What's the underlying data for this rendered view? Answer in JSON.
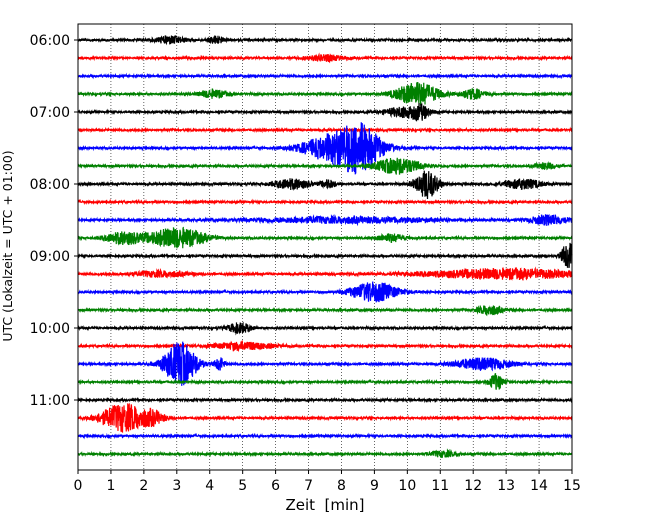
{
  "chart_data": {
    "type": "line",
    "xlabel": "Zeit  [min]",
    "ylabel": "UTC (Lokalzeit = UTC + 01:00)",
    "xlim": [
      0,
      15
    ],
    "xticks": [
      0,
      1,
      2,
      3,
      4,
      5,
      6,
      7,
      8,
      9,
      10,
      11,
      12,
      13,
      14,
      15
    ],
    "xtick_labels": [
      "0",
      "1",
      "2",
      "3",
      "4",
      "5",
      "6",
      "7",
      "8",
      "9",
      "10",
      "11",
      "12",
      "13",
      "14",
      "15"
    ],
    "ytick_labels": [
      "06:00",
      "07:00",
      "08:00",
      "09:00",
      "10:00",
      "11:00"
    ],
    "vertical_grid": "dotted",
    "color_cycle": [
      "#000000",
      "#ff0000",
      "#0000ff",
      "#008000"
    ],
    "trace_count": 24,
    "trace_interval_min": 15,
    "trace_start": "06:00",
    "base_noise": 1,
    "events": [
      {
        "trace": 0,
        "minute": 2.8,
        "amp": 4,
        "dur": 0.6
      },
      {
        "trace": 0,
        "minute": 4.2,
        "amp": 4,
        "dur": 0.3
      },
      {
        "trace": 1,
        "minute": 7.5,
        "amp": 3,
        "dur": 0.8
      },
      {
        "trace": 3,
        "minute": 4.1,
        "amp": 4,
        "dur": 0.6
      },
      {
        "trace": 3,
        "minute": 10.3,
        "amp": 12,
        "dur": 0.9
      },
      {
        "trace": 3,
        "minute": 12.0,
        "amp": 5,
        "dur": 0.5
      },
      {
        "trace": 4,
        "minute": 9.9,
        "amp": 5,
        "dur": 0.8
      },
      {
        "trace": 4,
        "minute": 10.4,
        "amp": 6,
        "dur": 0.4
      },
      {
        "trace": 6,
        "minute": 8.0,
        "amp": 16,
        "dur": 1.5
      },
      {
        "trace": 6,
        "minute": 8.6,
        "amp": 14,
        "dur": 0.8
      },
      {
        "trace": 7,
        "minute": 9.7,
        "amp": 8,
        "dur": 1.0
      },
      {
        "trace": 7,
        "minute": 14.2,
        "amp": 3,
        "dur": 0.5
      },
      {
        "trace": 8,
        "minute": 6.5,
        "amp": 5,
        "dur": 0.8
      },
      {
        "trace": 8,
        "minute": 7.6,
        "amp": 4,
        "dur": 0.3
      },
      {
        "trace": 8,
        "minute": 10.6,
        "amp": 14,
        "dur": 0.5
      },
      {
        "trace": 8,
        "minute": 13.5,
        "amp": 5,
        "dur": 0.8
      },
      {
        "trace": 10,
        "minute": 8.0,
        "amp": 3,
        "dur": 4.0
      },
      {
        "trace": 10,
        "minute": 14.3,
        "amp": 5,
        "dur": 0.8
      },
      {
        "trace": 11,
        "minute": 1.4,
        "amp": 6,
        "dur": 0.8
      },
      {
        "trace": 11,
        "minute": 3.0,
        "amp": 10,
        "dur": 1.2
      },
      {
        "trace": 11,
        "minute": 9.5,
        "amp": 4,
        "dur": 0.6
      },
      {
        "trace": 12,
        "minute": 14.9,
        "amp": 14,
        "dur": 0.3
      },
      {
        "trace": 13,
        "minute": 13.0,
        "amp": 5,
        "dur": 3.5
      },
      {
        "trace": 13,
        "minute": 2.5,
        "amp": 3,
        "dur": 1.2
      },
      {
        "trace": 14,
        "minute": 9.0,
        "amp": 10,
        "dur": 1.0
      },
      {
        "trace": 15,
        "minute": 12.5,
        "amp": 5,
        "dur": 0.5
      },
      {
        "trace": 16,
        "minute": 4.9,
        "amp": 5,
        "dur": 0.5
      },
      {
        "trace": 17,
        "minute": 5.0,
        "amp": 4,
        "dur": 1.2
      },
      {
        "trace": 18,
        "minute": 3.1,
        "amp": 22,
        "dur": 0.7
      },
      {
        "trace": 18,
        "minute": 4.3,
        "amp": 7,
        "dur": 0.2
      },
      {
        "trace": 18,
        "minute": 12.3,
        "amp": 6,
        "dur": 1.2
      },
      {
        "trace": 19,
        "minute": 12.7,
        "amp": 8,
        "dur": 0.3
      },
      {
        "trace": 21,
        "minute": 1.4,
        "amp": 14,
        "dur": 1.0
      },
      {
        "trace": 21,
        "minute": 2.3,
        "amp": 5,
        "dur": 0.5
      },
      {
        "trace": 23,
        "minute": 11.1,
        "amp": 3,
        "dur": 0.6
      }
    ]
  }
}
